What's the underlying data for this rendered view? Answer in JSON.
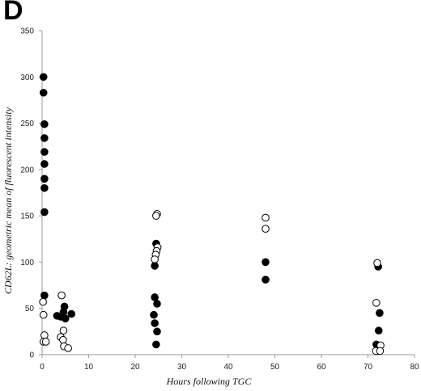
{
  "panel_label": "D",
  "chart_data": {
    "type": "scatter",
    "title": "",
    "xlabel": "Hours following TGC",
    "ylabel": "CD62L: geometric mean of fluorescent intensity",
    "xlim": [
      0,
      80
    ],
    "ylim": [
      0,
      350
    ],
    "xticks": [
      0,
      10,
      20,
      30,
      40,
      50,
      60,
      70,
      80
    ],
    "yticks": [
      0,
      50,
      100,
      150,
      200,
      250,
      300,
      350
    ],
    "grid": false,
    "legend": "none",
    "series": [
      {
        "marker": "filled-circle",
        "color": "#000000",
        "points": [
          [
            0.3,
            300
          ],
          [
            0.3,
            283
          ],
          [
            0.5,
            249
          ],
          [
            0.5,
            234
          ],
          [
            0.5,
            219
          ],
          [
            0.5,
            206
          ],
          [
            0.5,
            190
          ],
          [
            0.5,
            180
          ],
          [
            0.5,
            154
          ],
          [
            0.5,
            64
          ],
          [
            3.2,
            42
          ],
          [
            4.0,
            41
          ],
          [
            4.6,
            46
          ],
          [
            5.0,
            39
          ],
          [
            4.8,
            52
          ],
          [
            6.3,
            44
          ],
          [
            24.5,
            120
          ],
          [
            24.2,
            96
          ],
          [
            24.2,
            62
          ],
          [
            24.7,
            55
          ],
          [
            24.0,
            43
          ],
          [
            24.2,
            34
          ],
          [
            24.7,
            25
          ],
          [
            24.5,
            11
          ],
          [
            48.0,
            100
          ],
          [
            48.0,
            81
          ],
          [
            72.2,
            95
          ],
          [
            72.5,
            45
          ],
          [
            72.3,
            26
          ],
          [
            71.8,
            11
          ],
          [
            72.0,
            4
          ]
        ]
      },
      {
        "marker": "open-circle",
        "color": "#000000",
        "points": [
          [
            0.2,
            57
          ],
          [
            0.3,
            43
          ],
          [
            0.5,
            21
          ],
          [
            0.3,
            14
          ],
          [
            0.8,
            14
          ],
          [
            4.2,
            64
          ],
          [
            4.6,
            26
          ],
          [
            4.0,
            19
          ],
          [
            4.5,
            16
          ],
          [
            4.7,
            9
          ],
          [
            5.6,
            7
          ],
          [
            24.7,
            152
          ],
          [
            24.5,
            150
          ],
          [
            24.8,
            116
          ],
          [
            24.6,
            112
          ],
          [
            24.4,
            108
          ],
          [
            24.2,
            103
          ],
          [
            48.0,
            148
          ],
          [
            48.0,
            136
          ],
          [
            72.0,
            99
          ],
          [
            71.8,
            56
          ],
          [
            72.7,
            10
          ],
          [
            71.7,
            4
          ],
          [
            72.6,
            4
          ]
        ]
      }
    ]
  }
}
